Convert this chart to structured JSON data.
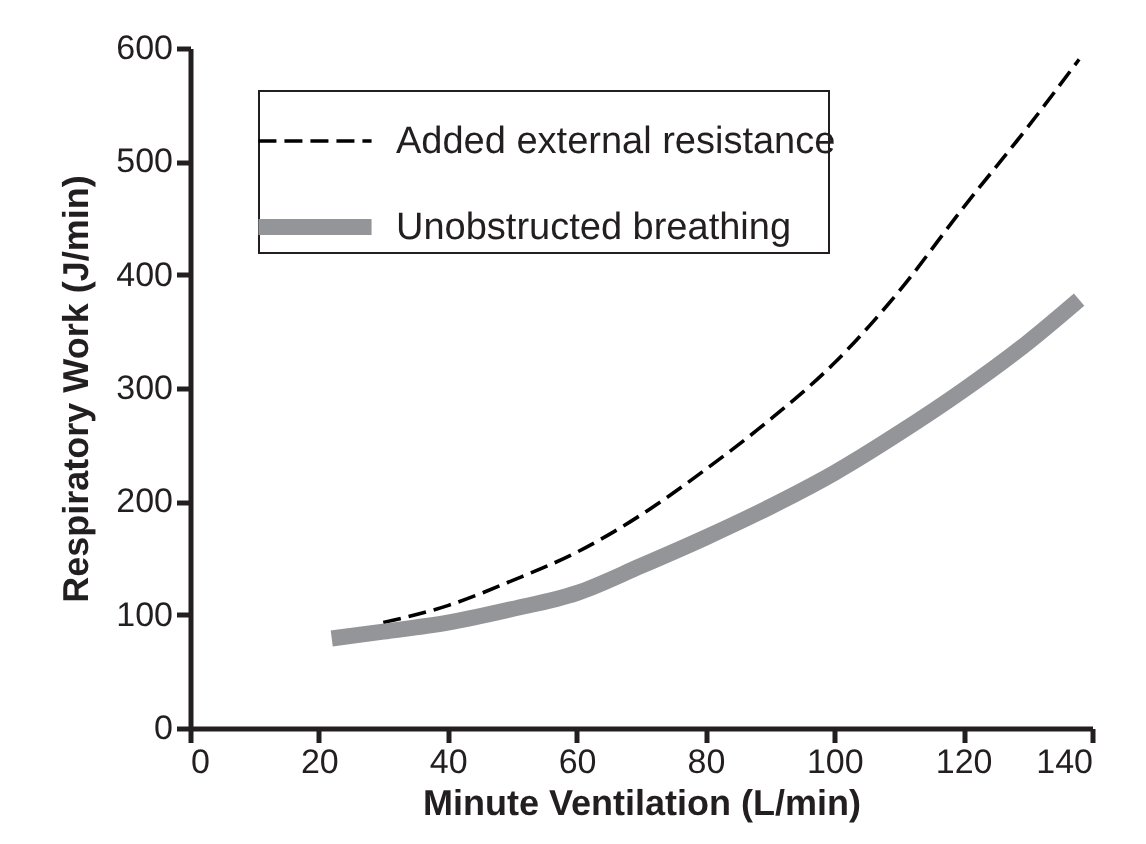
{
  "chart_data": {
    "type": "line",
    "xlabel": "Minute Ventilation (L/min)",
    "ylabel": "Respiratory Work (J/min)",
    "xlim": [
      0,
      140
    ],
    "ylim": [
      0,
      600
    ],
    "xticks": [
      0,
      20,
      40,
      60,
      80,
      100,
      120,
      140
    ],
    "yticks": [
      0,
      100,
      200,
      300,
      400,
      500,
      600
    ],
    "grid": false,
    "legend": "top left",
    "marker": "none",
    "series": [
      {
        "name": "Added external resistance",
        "color": "#000000",
        "line_style": "dashed",
        "x": [
          30,
          40,
          50,
          60,
          70,
          80,
          90,
          100,
          110,
          120,
          130,
          138
        ],
        "values": [
          93,
          108,
          130,
          155,
          188,
          228,
          272,
          322,
          385,
          459,
          530,
          590
        ]
      },
      {
        "name": "Unobstructed breathing",
        "color": "#939598",
        "line_style": "solid",
        "x": [
          22,
          30,
          40,
          50,
          60,
          70,
          80,
          90,
          100,
          110,
          120,
          130,
          138
        ],
        "values": [
          79,
          85,
          93,
          105,
          119,
          143,
          168,
          195,
          225,
          260,
          298,
          340,
          378
        ]
      }
    ]
  }
}
